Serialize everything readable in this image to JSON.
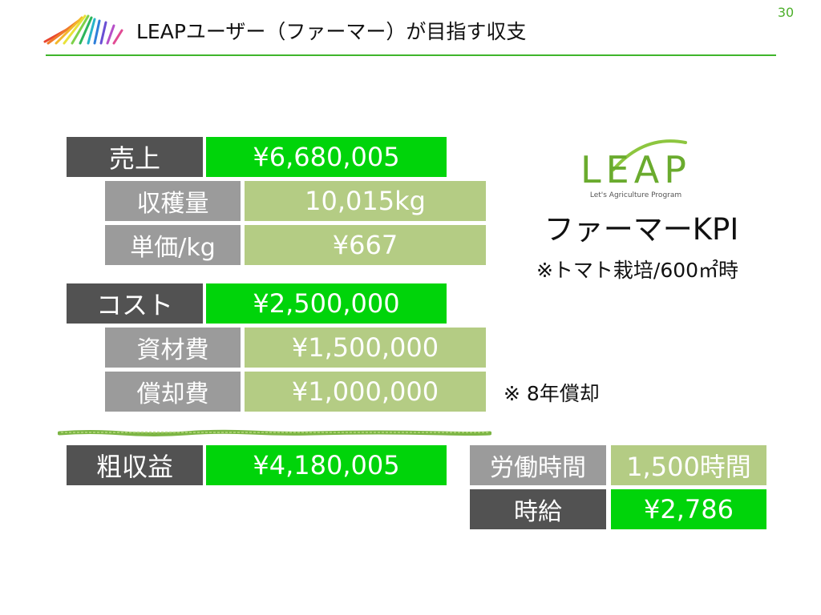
{
  "page": {
    "number": "30",
    "title": "LEAPユーザー（ファーマー）が目指す収支"
  },
  "brand": {
    "logo_text": "LEAP",
    "logo_tagline": "Let's Agriculture Program",
    "accent_green": "#3fb52b",
    "bright_green": "#00d40a",
    "olive_green": "#b4cc84",
    "dark_grey": "#525252",
    "light_grey": "#9b9b9b"
  },
  "kpi": {
    "title": "ファーマーKPI",
    "note": "※トマト栽培/600㎡時",
    "depreciation_note": "※ 8年償却"
  },
  "revenue": {
    "label": "売上",
    "value": "¥6,680,005",
    "harvest_label": "収穫量",
    "harvest_value": "10,015kg",
    "unit_price_label": "単価/kg",
    "unit_price_value": "¥667"
  },
  "cost": {
    "label": "コスト",
    "value": "¥2,500,000",
    "materials_label": "資材費",
    "materials_value": "¥1,500,000",
    "depreciation_label": "償却費",
    "depreciation_value": "¥1,000,000"
  },
  "profit": {
    "label": "粗収益",
    "value": "¥4,180,005"
  },
  "labor": {
    "hours_label": "労働時間",
    "hours_value": "1,500時間",
    "wage_label": "時給",
    "wage_value": "¥2,786"
  }
}
